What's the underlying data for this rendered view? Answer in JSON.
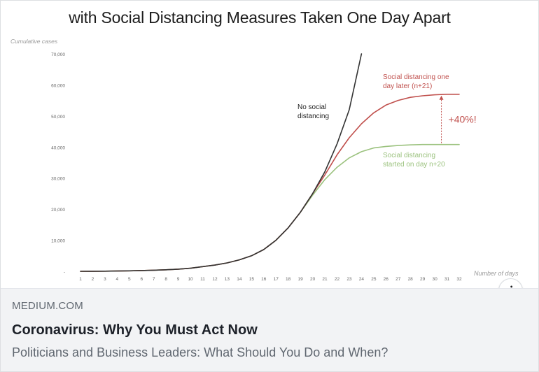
{
  "preview": {
    "domain": "MEDIUM.COM",
    "headline": "Coronavirus: Why You Must Act Now",
    "description": "Politicians and Business Leaders: What Should You Do and When?",
    "info_symbol": "i"
  },
  "chart_data": {
    "type": "line",
    "title": "with Social Distancing Measures Taken One Day Apart",
    "xlabel": "Number of days",
    "ylabel": "Cumulative cases",
    "xlim": [
      1,
      32
    ],
    "ylim": [
      0,
      70000
    ],
    "x_ticks": [
      1,
      2,
      3,
      4,
      5,
      6,
      7,
      8,
      9,
      10,
      11,
      12,
      13,
      14,
      15,
      16,
      17,
      18,
      19,
      20,
      21,
      22,
      23,
      24,
      25,
      26,
      27,
      28,
      29,
      30,
      31,
      32
    ],
    "y_ticks": [
      {
        "value": 0,
        "label": "-"
      },
      {
        "value": 10000,
        "label": "10,000"
      },
      {
        "value": 20000,
        "label": "20,000"
      },
      {
        "value": 30000,
        "label": "30,000"
      },
      {
        "value": 40000,
        "label": "40,000"
      },
      {
        "value": 50000,
        "label": "50,000"
      },
      {
        "value": 60000,
        "label": "60,000"
      },
      {
        "value": 70000,
        "label": "70,000"
      }
    ],
    "grid": false,
    "series": [
      {
        "name": "No social distancing",
        "label_lines": [
          "No social",
          "distancing"
        ],
        "color": "#333333",
        "x": [
          1,
          2,
          3,
          4,
          5,
          6,
          7,
          8,
          9,
          10,
          11,
          12,
          13,
          14,
          15,
          16,
          17,
          18,
          19,
          20,
          21,
          22,
          23,
          24
        ],
        "values": [
          0,
          20,
          50,
          100,
          150,
          250,
          350,
          500,
          700,
          1000,
          1500,
          2000,
          2700,
          3700,
          5000,
          7000,
          10000,
          14000,
          19000,
          25000,
          32000,
          41000,
          52000,
          70000
        ]
      },
      {
        "name": "Social distancing one day later (n+21)",
        "label_lines": [
          "Social distancing one",
          "day later (n+21)"
        ],
        "color": "#c0504d",
        "x": [
          1,
          2,
          3,
          4,
          5,
          6,
          7,
          8,
          9,
          10,
          11,
          12,
          13,
          14,
          15,
          16,
          17,
          18,
          19,
          20,
          21,
          22,
          23,
          24,
          25,
          26,
          27,
          28,
          29,
          30,
          31,
          32
        ],
        "values": [
          0,
          20,
          50,
          100,
          150,
          250,
          350,
          500,
          700,
          1000,
          1500,
          2000,
          2700,
          3700,
          5000,
          7000,
          10000,
          14000,
          19000,
          25000,
          31000,
          37500,
          43000,
          47500,
          51000,
          53500,
          55000,
          56000,
          56500,
          56800,
          57000,
          57000
        ]
      },
      {
        "name": "Social distancing started on day n+20",
        "label_lines": [
          "Social distancing",
          "started on day n+20"
        ],
        "color": "#9bc27e",
        "x": [
          1,
          2,
          3,
          4,
          5,
          6,
          7,
          8,
          9,
          10,
          11,
          12,
          13,
          14,
          15,
          16,
          17,
          18,
          19,
          20,
          21,
          22,
          23,
          24,
          25,
          26,
          27,
          28,
          29,
          30,
          31,
          32
        ],
        "values": [
          0,
          20,
          50,
          100,
          150,
          250,
          350,
          500,
          700,
          1000,
          1500,
          2000,
          2700,
          3700,
          5000,
          7000,
          10000,
          14000,
          19000,
          24500,
          29500,
          33500,
          36500,
          38500,
          39700,
          40200,
          40500,
          40700,
          40800,
          40800,
          40800,
          40800
        ]
      }
    ],
    "annotation": {
      "text": "+40%!",
      "color": "#c0504d",
      "x": 31,
      "from": 40800,
      "to": 57000
    }
  }
}
